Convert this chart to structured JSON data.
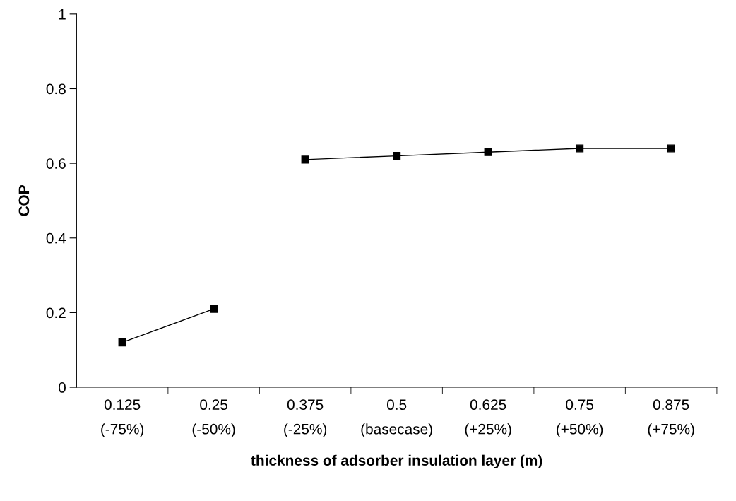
{
  "chart_data": {
    "type": "line",
    "xlabel": "thickness of adsorber insulation layer (m)",
    "ylabel": "COP",
    "categories": [
      "0.125\n(-75%)",
      "0.25\n(-50%)",
      "0.375\n(-25%)",
      "0.5\n(basecase)",
      "0.625\n(+25%)",
      "0.75\n(+50%)",
      "0.875\n(+75%)"
    ],
    "series": [
      {
        "color": "#000000",
        "values": [
          0.12,
          0.21,
          null,
          null,
          null,
          null,
          null
        ]
      },
      {
        "color": "#000000",
        "values": [
          null,
          null,
          0.61,
          0.62,
          0.63,
          0.64,
          0.64
        ]
      }
    ],
    "ylim": [
      0,
      1
    ],
    "yticks": [
      0,
      0.2,
      0.4,
      0.6,
      0.8,
      1
    ],
    "marker": "square",
    "line_style": "solid",
    "grid": false
  }
}
